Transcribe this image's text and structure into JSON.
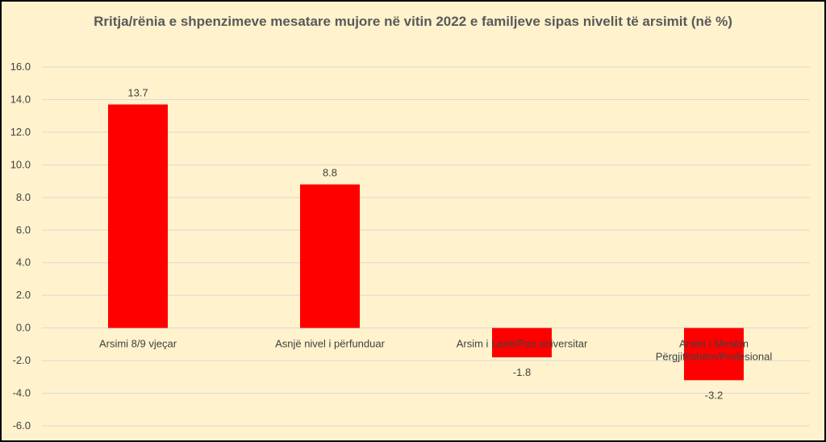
{
  "chart_data": {
    "type": "bar",
    "title": "Rritja/rënia e shpenzimeve mesatare mujore në vitin 2022 e familjeve sipas nivelit të arsimit (në %)",
    "categories": [
      "Arsimi 8/9 vjeçar",
      "Asnjë nivel i përfunduar",
      "Arsim i Lartë/Pas universitar",
      "Arsim i Mesëm Përgjithshëm/Profesional"
    ],
    "category_lines": [
      [
        "Arsimi 8/9 vjeçar"
      ],
      [
        "Asnjë nivel i përfunduar"
      ],
      [
        "Arsim i Lartë/Pas universitar"
      ],
      [
        "Arsim i Mesëm",
        "Përgjithshëm/Profesional"
      ]
    ],
    "values": [
      13.7,
      8.8,
      -1.8,
      -3.2
    ],
    "data_labels": [
      "13.7",
      "8.8",
      "-1.8",
      "-3.2"
    ],
    "ylim": [
      -6,
      16
    ],
    "yticks": [
      16,
      14,
      12,
      10,
      8,
      6,
      4,
      2,
      0,
      -2,
      -4,
      -6
    ],
    "ytick_labels": [
      "16.0",
      "14.0",
      "12.0",
      "10.0",
      "8.0",
      "6.0",
      "4.0",
      "2.0",
      "0.0",
      "-2.0",
      "-4.0",
      "-6.0"
    ],
    "grid": true,
    "legend": "none",
    "bar_color": "#ff0000",
    "background_color": "#fff2cc"
  }
}
